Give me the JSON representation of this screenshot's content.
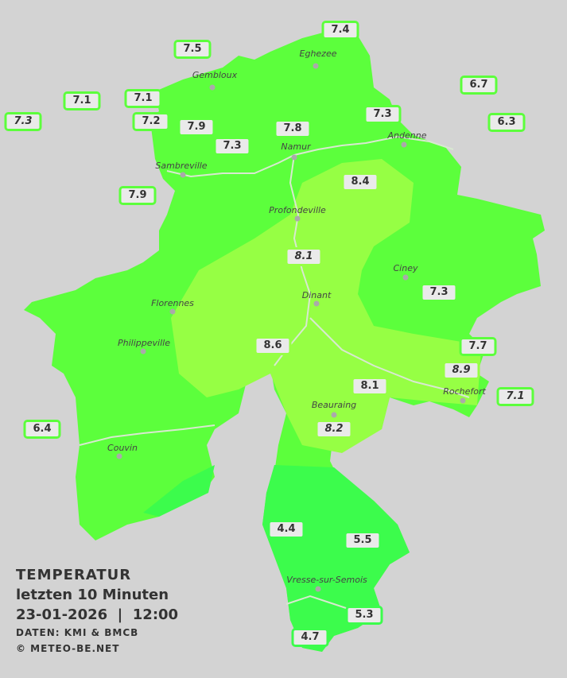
{
  "legend": {
    "title": "TEMPERATUR",
    "subtitle": "letzten 10 Minuten",
    "datetime": "23-01-2026  |  12:00",
    "source": "DATEN: KMI & BMCB",
    "copyright": "© METEO-BE.NET"
  },
  "colors": {
    "background": "#d3d3d3",
    "zone_7_8": "#5cff3c",
    "zone_8_9": "#96ff44",
    "zone_4_6": "#3cfc4c",
    "river": "#d8e8d0"
  },
  "towns": [
    "Eghezee",
    "Gembloux",
    "Andenne",
    "Namur",
    "Sambreville",
    "Profondeville",
    "Ciney",
    "Dinant",
    "Florennes",
    "Philippeville",
    "Rochefort",
    "Beauraing",
    "Couvin",
    "Vresse-sur-Semois"
  ],
  "stations": [
    {
      "value": "7.4",
      "italic": false
    },
    {
      "value": "7.5",
      "italic": false
    },
    {
      "value": "6.7",
      "italic": false
    },
    {
      "value": "7.1",
      "italic": false
    },
    {
      "value": "7.1",
      "italic": false
    },
    {
      "value": "7.3",
      "italic": true
    },
    {
      "value": "7.2",
      "italic": false
    },
    {
      "value": "7.9",
      "italic": false
    },
    {
      "value": "7.3",
      "italic": false
    },
    {
      "value": "7.8",
      "italic": false
    },
    {
      "value": "7.3",
      "italic": false
    },
    {
      "value": "6.3",
      "italic": false
    },
    {
      "value": "7.9",
      "italic": false
    },
    {
      "value": "8.4",
      "italic": false
    },
    {
      "value": "8.1",
      "italic": true
    },
    {
      "value": "7.3",
      "italic": false
    },
    {
      "value": "8.6",
      "italic": false
    },
    {
      "value": "7.7",
      "italic": false
    },
    {
      "value": "8.9",
      "italic": true
    },
    {
      "value": "8.1",
      "italic": false
    },
    {
      "value": "7.1",
      "italic": true
    },
    {
      "value": "8.2",
      "italic": true
    },
    {
      "value": "6.4",
      "italic": false
    },
    {
      "value": "4.4",
      "italic": false
    },
    {
      "value": "5.5",
      "italic": false
    },
    {
      "value": "5.3",
      "italic": false
    },
    {
      "value": "4.7",
      "italic": false
    }
  ]
}
